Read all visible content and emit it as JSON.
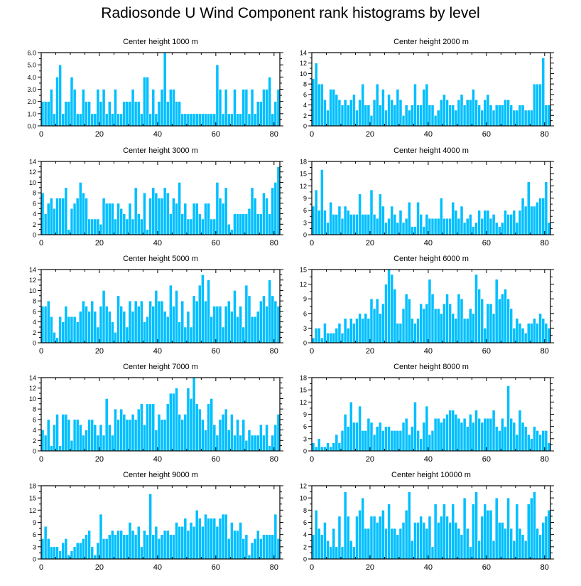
{
  "title": "Radiosonde U Wind Component rank histograms by level",
  "colors": {
    "bar": "#00BFFF",
    "bar_edge": "#ffffff",
    "axis": "#000000"
  },
  "chart_data": [
    {
      "type": "bar",
      "title": "Center height 1000 m",
      "xlim": [
        0,
        82
      ],
      "ylim": [
        0,
        6
      ],
      "xticks": [
        0,
        20,
        40,
        60,
        80
      ],
      "yticks": [
        0,
        1,
        2,
        3,
        4,
        5,
        6
      ],
      "ytick_labels": [
        "0.0",
        "1.0",
        "2.0",
        "3.0",
        "4.0",
        "5.0",
        "6.0"
      ],
      "values": [
        2,
        2,
        2,
        3,
        1,
        4,
        5,
        1,
        2,
        2,
        4,
        3,
        1,
        1,
        3,
        2,
        2,
        1,
        1,
        3,
        2,
        3,
        1,
        2,
        1,
        3,
        1,
        1,
        2,
        2,
        2,
        3,
        2,
        2,
        1,
        4,
        4,
        1,
        3,
        1,
        2,
        3,
        6,
        2,
        3,
        3,
        2,
        2,
        1,
        1,
        1,
        1,
        1,
        1,
        1,
        1,
        1,
        1,
        1,
        1,
        5,
        3,
        1,
        3,
        1,
        1,
        3,
        1,
        1,
        3,
        3,
        1,
        3,
        1,
        2,
        2,
        3,
        3,
        4,
        1,
        2,
        3
      ]
    },
    {
      "type": "bar",
      "title": "Center height 2000 m",
      "xlim": [
        0,
        82
      ],
      "ylim": [
        0,
        14
      ],
      "xticks": [
        0,
        20,
        40,
        60,
        80
      ],
      "yticks": [
        0,
        2,
        4,
        6,
        8,
        10,
        12,
        14
      ],
      "ytick_labels": [
        "0",
        "2",
        "4",
        "6",
        "8",
        "10",
        "12",
        "14"
      ],
      "values": [
        9,
        12,
        8,
        8,
        5,
        3,
        7,
        7,
        6,
        5,
        4,
        5,
        4,
        5,
        6,
        3,
        5,
        8,
        4,
        4,
        2,
        5,
        8,
        4,
        7,
        3,
        6,
        5,
        4,
        7,
        5,
        2,
        4,
        3,
        4,
        8,
        4,
        4,
        7,
        8,
        4,
        4,
        2,
        3,
        5,
        6,
        5,
        4,
        4,
        3,
        5,
        6,
        4,
        5,
        5,
        7,
        5,
        4,
        3,
        5,
        6,
        4,
        3,
        4,
        4,
        4,
        5,
        5,
        4,
        3,
        3,
        4,
        4,
        3,
        3,
        3,
        8,
        8,
        8,
        13,
        4,
        4
      ]
    },
    {
      "type": "bar",
      "title": "Center height 3000 m",
      "xlim": [
        0,
        82
      ],
      "ylim": [
        0,
        14
      ],
      "xticks": [
        0,
        20,
        40,
        60,
        80
      ],
      "yticks": [
        0,
        2,
        4,
        6,
        8,
        10,
        12,
        14
      ],
      "ytick_labels": [
        "0",
        "2",
        "4",
        "6",
        "8",
        "10",
        "12",
        "14"
      ],
      "values": [
        8,
        4,
        6,
        7,
        5,
        7,
        7,
        7,
        9,
        1,
        5,
        6,
        7,
        10,
        8,
        7,
        3,
        3,
        3,
        3,
        2,
        7,
        6,
        6,
        6,
        3,
        6,
        5,
        4,
        3,
        6,
        3,
        9,
        4,
        3,
        8,
        1,
        7,
        9,
        8,
        7,
        7,
        9,
        8,
        4,
        7,
        6,
        10,
        4,
        6,
        3,
        3,
        6,
        6,
        4,
        3,
        6,
        6,
        3,
        3,
        10,
        7,
        6,
        9,
        2,
        1,
        4,
        4,
        4,
        4,
        4,
        5,
        9,
        7,
        4,
        4,
        8,
        7,
        4,
        9,
        10,
        13
      ]
    },
    {
      "type": "bar",
      "title": "Center height 4000 m",
      "xlim": [
        0,
        82
      ],
      "ylim": [
        0,
        18
      ],
      "xticks": [
        0,
        20,
        40,
        60,
        80
      ],
      "yticks": [
        0,
        3,
        6,
        9,
        12,
        15,
        18
      ],
      "ytick_labels": [
        "0",
        "3",
        "6",
        "9",
        "12",
        "15",
        "18"
      ],
      "values": [
        7,
        11,
        6,
        16,
        6,
        3,
        8,
        5,
        5,
        7,
        4,
        7,
        6,
        5,
        5,
        5,
        10,
        5,
        5,
        5,
        11,
        5,
        4,
        10,
        7,
        3,
        4,
        7,
        5,
        3,
        6,
        3,
        4,
        8,
        2,
        2,
        8,
        5,
        2,
        5,
        4,
        4,
        4,
        4,
        9,
        4,
        4,
        4,
        8,
        6,
        4,
        7,
        3,
        4,
        5,
        2,
        3,
        6,
        4,
        6,
        6,
        4,
        5,
        3,
        2,
        3,
        6,
        5,
        5,
        6,
        3,
        6,
        9,
        7,
        13,
        7,
        7,
        8,
        9,
        9,
        13,
        3
      ]
    },
    {
      "type": "bar",
      "title": "Center height 5000 m",
      "xlim": [
        0,
        82
      ],
      "ylim": [
        0,
        14
      ],
      "xticks": [
        0,
        20,
        40,
        60,
        80
      ],
      "yticks": [
        0,
        2,
        4,
        6,
        8,
        10,
        12,
        14
      ],
      "ytick_labels": [
        "0",
        "2",
        "4",
        "6",
        "8",
        "10",
        "12",
        "14"
      ],
      "values": [
        7,
        7,
        8,
        5,
        2,
        1,
        5,
        4,
        7,
        5,
        5,
        5,
        4,
        6,
        8,
        7,
        6,
        8,
        6,
        3,
        7,
        10,
        7,
        6,
        4,
        2,
        9,
        7,
        6,
        3,
        8,
        6,
        8,
        7,
        8,
        4,
        5,
        8,
        7,
        10,
        8,
        8,
        6,
        5,
        11,
        7,
        10,
        4,
        8,
        3,
        6,
        3,
        9,
        8,
        11,
        13,
        8,
        12,
        5,
        7,
        7,
        7,
        3,
        7,
        8,
        6,
        10,
        5,
        7,
        3,
        11,
        9,
        5,
        5,
        6,
        8,
        9,
        7,
        12,
        9,
        8,
        7
      ]
    },
    {
      "type": "bar",
      "title": "Center height 6000 m",
      "xlim": [
        0,
        82
      ],
      "ylim": [
        0,
        15
      ],
      "xticks": [
        0,
        20,
        40,
        60,
        80
      ],
      "yticks": [
        0,
        3,
        6,
        9,
        12,
        15
      ],
      "ytick_labels": [
        "0",
        "3",
        "6",
        "9",
        "12",
        "15"
      ],
      "values": [
        1,
        3,
        3,
        1,
        4,
        2,
        2,
        2,
        3,
        4,
        2,
        5,
        3,
        5,
        4,
        5,
        6,
        5,
        6,
        5,
        9,
        7,
        9,
        6,
        8,
        12,
        15,
        14,
        11,
        4,
        4,
        7,
        10,
        9,
        5,
        4,
        5,
        8,
        7,
        8,
        13,
        10,
        7,
        7,
        6,
        8,
        10,
        8,
        6,
        5,
        10,
        9,
        5,
        5,
        7,
        6,
        14,
        11,
        9,
        3,
        8,
        8,
        6,
        13,
        9,
        10,
        11,
        9,
        7,
        3,
        5,
        4,
        3,
        2,
        4,
        4,
        5,
        4,
        6,
        5,
        4,
        3
      ]
    },
    {
      "type": "bar",
      "title": "Center height 7000 m",
      "xlim": [
        0,
        82
      ],
      "ylim": [
        0,
        14
      ],
      "xticks": [
        0,
        20,
        40,
        60,
        80
      ],
      "yticks": [
        0,
        2,
        4,
        6,
        8,
        10,
        12,
        14
      ],
      "ytick_labels": [
        "0",
        "2",
        "4",
        "6",
        "8",
        "10",
        "12",
        "14"
      ],
      "values": [
        4,
        3,
        6,
        1,
        5,
        7,
        1,
        7,
        7,
        6,
        2,
        6,
        6,
        5,
        3,
        4,
        6,
        6,
        5,
        3,
        5,
        3,
        10,
        5,
        3,
        8,
        6,
        8,
        7,
        6,
        6,
        7,
        6,
        8,
        9,
        5,
        9,
        9,
        9,
        4,
        7,
        6,
        6,
        9,
        11,
        11,
        12,
        7,
        6,
        7,
        12,
        10,
        14,
        9,
        8,
        6,
        4,
        9,
        10,
        5,
        3,
        6,
        7,
        8,
        4,
        7,
        3,
        6,
        3,
        6,
        2,
        4,
        3,
        3,
        3,
        5,
        3,
        5,
        1,
        3,
        5,
        7
      ]
    },
    {
      "type": "bar",
      "title": "Center height 8000 m",
      "xlim": [
        0,
        82
      ],
      "ylim": [
        0,
        18
      ],
      "xticks": [
        0,
        20,
        40,
        60,
        80
      ],
      "yticks": [
        0,
        3,
        6,
        9,
        12,
        15,
        18
      ],
      "ytick_labels": [
        "0",
        "3",
        "6",
        "9",
        "12",
        "15",
        "18"
      ],
      "values": [
        2,
        1,
        3,
        1,
        1,
        2,
        1,
        2,
        4,
        2,
        5,
        9,
        6,
        12,
        7,
        7,
        11,
        5,
        5,
        8,
        7,
        4,
        6,
        7,
        5,
        6,
        6,
        5,
        5,
        5,
        5,
        7,
        8,
        4,
        6,
        12,
        5,
        3,
        7,
        11,
        4,
        5,
        8,
        8,
        7,
        8,
        9,
        10,
        10,
        9,
        8,
        7,
        8,
        6,
        9,
        7,
        10,
        8,
        7,
        8,
        8,
        8,
        10,
        6,
        5,
        8,
        6,
        16,
        8,
        7,
        4,
        10,
        7,
        6,
        4,
        3,
        6,
        5,
        4,
        5,
        5,
        2
      ]
    },
    {
      "type": "bar",
      "title": "Center height 9000 m",
      "xlim": [
        0,
        82
      ],
      "ylim": [
        0,
        18
      ],
      "xticks": [
        0,
        20,
        40,
        60,
        80
      ],
      "yticks": [
        0,
        3,
        6,
        9,
        12,
        15,
        18
      ],
      "ytick_labels": [
        "0",
        "3",
        "6",
        "9",
        "12",
        "15",
        "18"
      ],
      "values": [
        5,
        8,
        5,
        3,
        3,
        3,
        2,
        4,
        5,
        1,
        2,
        3,
        4,
        4,
        5,
        6,
        7,
        3,
        1,
        4,
        11,
        5,
        5,
        6,
        7,
        6,
        7,
        7,
        6,
        6,
        9,
        7,
        6,
        8,
        3,
        7,
        6,
        16,
        6,
        8,
        5,
        6,
        7,
        7,
        6,
        6,
        9,
        8,
        8,
        10,
        7,
        9,
        8,
        12,
        10,
        8,
        11,
        10,
        10,
        10,
        8,
        10,
        11,
        11,
        5,
        9,
        7,
        7,
        9,
        5,
        6,
        1,
        4,
        5,
        7,
        5,
        6,
        6,
        6,
        6,
        11,
        5
      ]
    },
    {
      "type": "bar",
      "title": "Center height 10000 m",
      "xlim": [
        0,
        82
      ],
      "ylim": [
        0,
        12
      ],
      "xticks": [
        0,
        20,
        40,
        60,
        80
      ],
      "yticks": [
        0,
        2,
        4,
        6,
        8,
        10,
        12
      ],
      "ytick_labels": [
        "0",
        "2",
        "4",
        "6",
        "8",
        "10",
        "12"
      ],
      "values": [
        4,
        8,
        5,
        4,
        6,
        3,
        2,
        5,
        2,
        7,
        2,
        11,
        7,
        3,
        2,
        7,
        8,
        10,
        5,
        5,
        7,
        7,
        6,
        7,
        8,
        5,
        9,
        5,
        5,
        4,
        5,
        6,
        8,
        11,
        3,
        6,
        6,
        7,
        6,
        5,
        7,
        2,
        9,
        6,
        7,
        9,
        7,
        6,
        9,
        6,
        5,
        4,
        10,
        5,
        2,
        9,
        11,
        3,
        7,
        9,
        8,
        8,
        3,
        10,
        6,
        6,
        5,
        10,
        5,
        3,
        9,
        5,
        4,
        3,
        9,
        10,
        11,
        5,
        4,
        6,
        7,
        8
      ]
    }
  ]
}
